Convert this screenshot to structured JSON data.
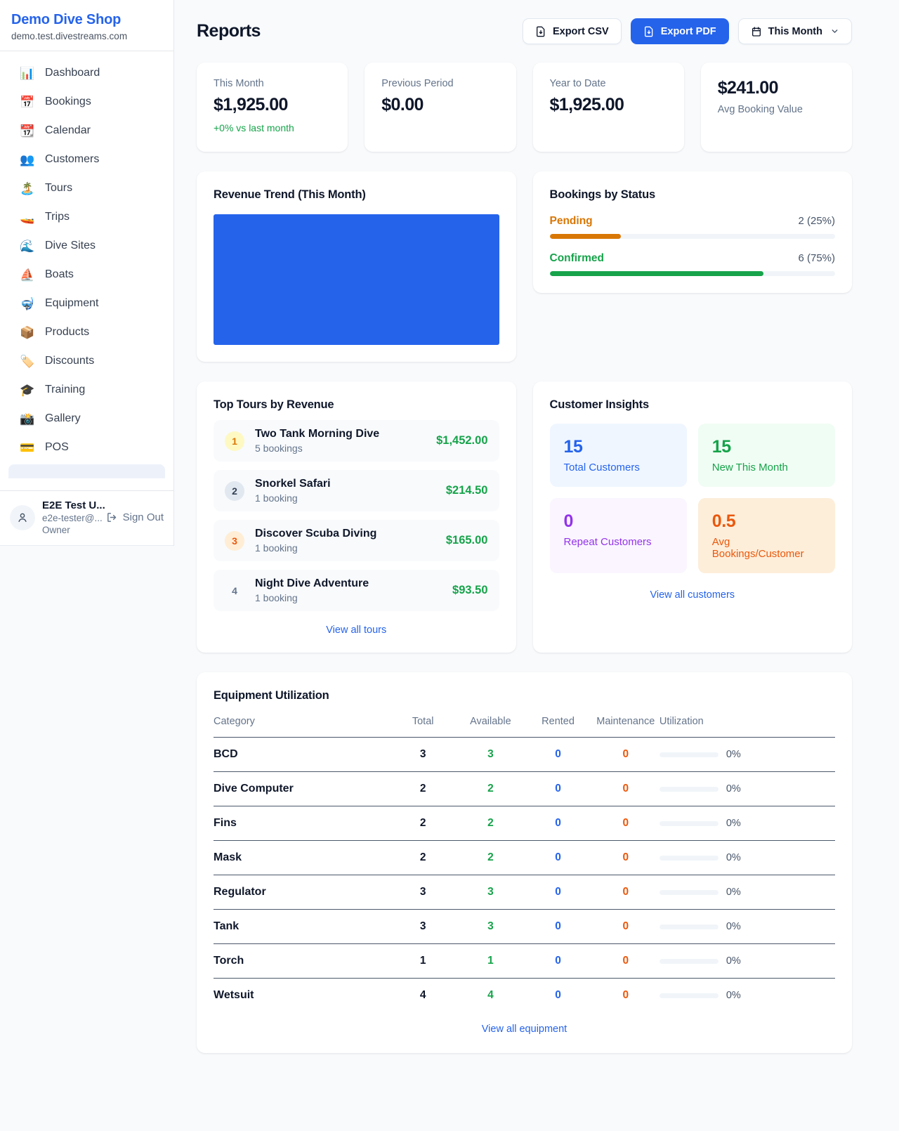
{
  "sidebar": {
    "brand": {
      "name": "Demo Dive Shop",
      "domain": "demo.test.divestreams.com"
    },
    "nav": [
      {
        "label": "Dashboard",
        "icon": "📊"
      },
      {
        "label": "Bookings",
        "icon": "📅"
      },
      {
        "label": "Calendar",
        "icon": "📆"
      },
      {
        "label": "Customers",
        "icon": "👥"
      },
      {
        "label": "Tours",
        "icon": "🏝️"
      },
      {
        "label": "Trips",
        "icon": "🚤"
      },
      {
        "label": "Dive Sites",
        "icon": "🌊"
      },
      {
        "label": "Boats",
        "icon": "⛵"
      },
      {
        "label": "Equipment",
        "icon": "🤿"
      },
      {
        "label": "Products",
        "icon": "📦"
      },
      {
        "label": "Discounts",
        "icon": "🏷️"
      },
      {
        "label": "Training",
        "icon": "🎓"
      },
      {
        "label": "Gallery",
        "icon": "📸"
      },
      {
        "label": "POS",
        "icon": "💳"
      }
    ],
    "user": {
      "name": "E2E Test U...",
      "email": "e2e-tester@...",
      "role": "Owner",
      "sign_out": "Sign Out"
    }
  },
  "header": {
    "title": "Reports",
    "export_csv": "Export CSV",
    "export_pdf": "Export PDF",
    "period": "This Month"
  },
  "stats": [
    {
      "label": "This Month",
      "value": "$1,925.00",
      "note": "+0% vs last month"
    },
    {
      "label": "Previous Period",
      "value": "$0.00"
    },
    {
      "label": "Year to Date",
      "value": "$1,925.00"
    },
    {
      "label": "Avg Booking Value",
      "value": "$241.00"
    }
  ],
  "revenue_trend": {
    "title": "Revenue Trend (This Month)",
    "bar_color": "#2563eb"
  },
  "bookings_by_status": {
    "title": "Bookings by Status",
    "rows": [
      {
        "label": "Pending",
        "value": "2 (25%)",
        "pct": 25,
        "color": "#d97706"
      },
      {
        "label": "Confirmed",
        "value": "6 (75%)",
        "pct": 75,
        "color": "#16a34a"
      }
    ]
  },
  "top_tours": {
    "title": "Top Tours by Revenue",
    "items": [
      {
        "rank": "1",
        "name": "Two Tank Morning Dive",
        "bookings": "5 bookings",
        "revenue": "$1,452.00"
      },
      {
        "rank": "2",
        "name": "Snorkel Safari",
        "bookings": "1 booking",
        "revenue": "$214.50"
      },
      {
        "rank": "3",
        "name": "Discover Scuba Diving",
        "bookings": "1 booking",
        "revenue": "$165.00"
      },
      {
        "rank": "4",
        "name": "Night Dive Adventure",
        "bookings": "1 booking",
        "revenue": "$93.50"
      }
    ],
    "view_all": "View all tours"
  },
  "customer_insights": {
    "title": "Customer Insights",
    "tiles": [
      {
        "value": "15",
        "label": "Total Customers",
        "fg": "#2563eb",
        "bg": "#eff6ff"
      },
      {
        "value": "15",
        "label": "New This Month",
        "fg": "#16a34a",
        "bg": "#f0fdf4"
      },
      {
        "value": "0",
        "label": "Repeat Customers",
        "fg": "#9333ea",
        "bg": "#faf5ff"
      },
      {
        "value": "0.5",
        "label": "Avg Bookings/Customer",
        "fg": "#ea580c",
        "bg": "#fdeeda"
      }
    ],
    "view_all": "View all customers"
  },
  "equipment": {
    "title": "Equipment Utilization",
    "columns": [
      "Category",
      "Total",
      "Available",
      "Rented",
      "Maintenance",
      "Utilization"
    ],
    "rows": [
      {
        "category": "BCD",
        "total": "3",
        "available": "3",
        "rented": "0",
        "maintenance": "0",
        "utilization": "0%",
        "pct": 0
      },
      {
        "category": "Dive Computer",
        "total": "2",
        "available": "2",
        "rented": "0",
        "maintenance": "0",
        "utilization": "0%",
        "pct": 0
      },
      {
        "category": "Fins",
        "total": "2",
        "available": "2",
        "rented": "0",
        "maintenance": "0",
        "utilization": "0%",
        "pct": 0
      },
      {
        "category": "Mask",
        "total": "2",
        "available": "2",
        "rented": "0",
        "maintenance": "0",
        "utilization": "0%",
        "pct": 0
      },
      {
        "category": "Regulator",
        "total": "3",
        "available": "3",
        "rented": "0",
        "maintenance": "0",
        "utilization": "0%",
        "pct": 0
      },
      {
        "category": "Tank",
        "total": "3",
        "available": "3",
        "rented": "0",
        "maintenance": "0",
        "utilization": "0%",
        "pct": 0
      },
      {
        "category": "Torch",
        "total": "1",
        "available": "1",
        "rented": "0",
        "maintenance": "0",
        "utilization": "0%",
        "pct": 0
      },
      {
        "category": "Wetsuit",
        "total": "4",
        "available": "4",
        "rented": "0",
        "maintenance": "0",
        "utilization": "0%",
        "pct": 0
      }
    ],
    "view_all": "View all equipment"
  }
}
